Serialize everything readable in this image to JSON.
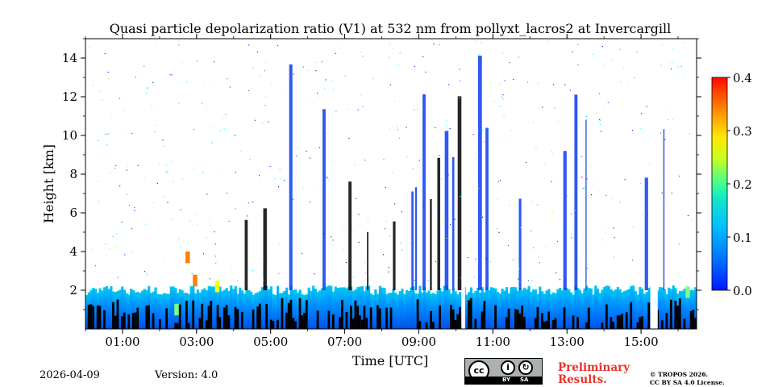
{
  "chart_data": {
    "type": "heatmap",
    "title": "Quasi particle depolarization ratio (V1) at 532 nm from pollyxt_lacros2 at Invercargill",
    "xlabel": "Time [UTC]",
    "ylabel": "Height [km]",
    "xlim": [
      0.0,
      16.5
    ],
    "ylim": [
      0.0,
      15.0
    ],
    "x_ticks": [
      {
        "value": 1,
        "label": "01:00"
      },
      {
        "value": 3,
        "label": "03:00"
      },
      {
        "value": 5,
        "label": "05:00"
      },
      {
        "value": 7,
        "label": "07:00"
      },
      {
        "value": 9,
        "label": "09:00"
      },
      {
        "value": 11,
        "label": "11:00"
      },
      {
        "value": 13,
        "label": "13:00"
      },
      {
        "value": 15,
        "label": "15:00"
      }
    ],
    "y_ticks": [
      {
        "value": 2,
        "label": "2"
      },
      {
        "value": 4,
        "label": "4"
      },
      {
        "value": 6,
        "label": "6"
      },
      {
        "value": 8,
        "label": "8"
      },
      {
        "value": 10,
        "label": "10"
      },
      {
        "value": 12,
        "label": "12"
      },
      {
        "value": 14,
        "label": "14"
      }
    ],
    "colorbar": {
      "min": 0.0,
      "max": 0.4,
      "ticks": [
        {
          "value": 0.0,
          "label": "0.0"
        },
        {
          "value": 0.1,
          "label": "0.1"
        },
        {
          "value": 0.2,
          "label": "0.2"
        },
        {
          "value": 0.3,
          "label": "0.3"
        },
        {
          "value": 0.4,
          "label": "0.4"
        }
      ],
      "colormap": "jet"
    },
    "no_data_gaps_utc": [
      [
        10.15,
        10.25
      ],
      [
        15.25,
        15.45
      ]
    ],
    "low_layer_top_km": 2.0,
    "high_depol_patches": [
      {
        "time": 2.9,
        "height_km": 2.5,
        "value": 0.3
      },
      {
        "time": 3.5,
        "height_km": 2.2,
        "value": 0.25
      },
      {
        "time": 2.4,
        "height_km": 1.0,
        "value": 0.2
      },
      {
        "time": 16.2,
        "height_km": 1.9,
        "value": 0.2
      },
      {
        "time": 2.7,
        "height_km": 3.7,
        "value": 0.3
      }
    ],
    "cloud_columns_utc": [
      4.3,
      4.8,
      5.5,
      6.4,
      7.1,
      7.6,
      8.3,
      8.8,
      8.9,
      9.1,
      9.3,
      9.5,
      9.7,
      9.9,
      10.05,
      10.6,
      10.8,
      11.7,
      12.9,
      13.2,
      13.5,
      15.1,
      15.6
    ]
  },
  "footer": {
    "date": "2026-04-09",
    "version": "Version: 4.0",
    "preliminary_line1": "Preliminary",
    "preliminary_line2": "Results.",
    "copyright_line1": "© TROPOS 2026.",
    "copyright_line2": "CC BY SA 4.0 License.",
    "cc_by": "BY",
    "cc_sa": "SA",
    "cc_symbol": "cc",
    "cc_by_symbol": "i",
    "cc_sa_symbol": "↻"
  }
}
